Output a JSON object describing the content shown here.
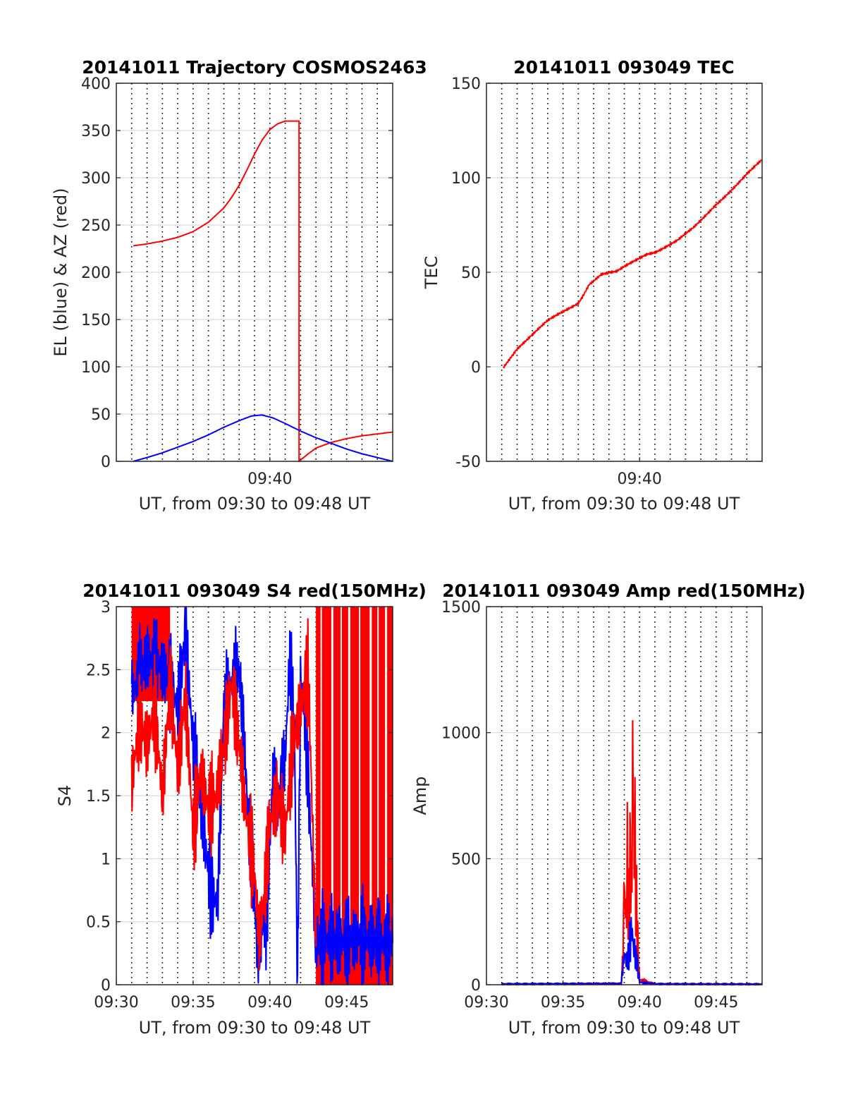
{
  "colors": {
    "red": "#ff0000",
    "blue": "#0000ff",
    "grid": "#262626",
    "axis": "#262626"
  },
  "chart_data": [
    {
      "id": "traj",
      "type": "line",
      "title": "20141011 Trajectory COSMOS2463",
      "xlabel": "UT, from 09:30 to 09:48 UT",
      "ylabel": "EL (blue) & AZ (red)",
      "xlim_min": [
        30,
        48
      ],
      "ylim": [
        0,
        400
      ],
      "yticks": [
        "0",
        "50",
        "100",
        "150",
        "200",
        "250",
        "300",
        "350",
        "400"
      ],
      "xticks": [
        {
          "at_min": 40,
          "label": "09:40"
        }
      ],
      "grid": "dotted vertical every minute, horizontal at y ticks",
      "series": [
        {
          "color": "red",
          "x_min": [
            31.1,
            32,
            33,
            34,
            35,
            36,
            37,
            37.5,
            38,
            38.5,
            39,
            39.5,
            40,
            40.5,
            41,
            41.5,
            41.9,
            41.9,
            42.5,
            43,
            44,
            45,
            46,
            47,
            48
          ],
          "y": [
            228,
            230,
            233,
            237,
            243,
            253,
            268,
            279,
            292,
            308,
            325,
            340,
            351,
            357,
            360,
            360,
            360,
            0,
            8,
            14,
            20,
            24,
            27,
            29,
            31
          ]
        },
        {
          "color": "blue",
          "x_min": [
            31.1,
            32,
            33,
            34,
            35,
            36,
            37,
            38,
            38.8,
            39.5,
            40.2,
            41,
            42,
            43,
            44,
            45,
            46,
            47,
            48
          ],
          "y": [
            0,
            4,
            9,
            15,
            21,
            28,
            36,
            43,
            48,
            49,
            46,
            40,
            32,
            25,
            19,
            13,
            8,
            4,
            0
          ]
        }
      ]
    },
    {
      "id": "tec",
      "type": "line",
      "title": "20141011 093049 TEC",
      "xlabel": "UT, from 09:30 to 09:48 UT",
      "ylabel": "TEC",
      "xlim_min": [
        30,
        48
      ],
      "ylim": [
        -50,
        150
      ],
      "yticks": [
        "-50",
        "0",
        "50",
        "100",
        "150"
      ],
      "xticks": [
        {
          "at_min": 40,
          "label": "09:40"
        }
      ],
      "series": [
        {
          "color": "red",
          "x_min": [
            31.1,
            32,
            33,
            34,
            35,
            36,
            36.3,
            36.7,
            37.5,
            38.5,
            39.5,
            40.5,
            41,
            41.5,
            42.5,
            43.5,
            44,
            45,
            46,
            47,
            47.7,
            48
          ],
          "y": [
            0,
            10,
            17,
            24,
            29,
            34,
            38,
            44,
            49,
            50,
            55,
            60,
            61,
            63,
            67,
            73,
            77,
            86,
            94,
            102,
            107,
            109
          ]
        }
      ]
    },
    {
      "id": "s4",
      "type": "line",
      "title": "20141011 093049 S4 red(150MHz)",
      "xlabel": "UT, from 09:30 to 09:48 UT",
      "ylabel": "S4",
      "xlim_min": [
        30,
        48
      ],
      "ylim": [
        0,
        3
      ],
      "yticks": [
        "0",
        "0.5",
        "1",
        "1.5",
        "2",
        "2.5",
        "3"
      ],
      "xticks": [
        {
          "at_min": 30,
          "label": "09:30"
        },
        {
          "at_min": 35,
          "label": "09:35"
        },
        {
          "at_min": 40,
          "label": "09:40"
        },
        {
          "at_min": 45,
          "label": "09:45"
        }
      ],
      "series": [
        {
          "color": "blue",
          "x_min": [
            31,
            32,
            33,
            33.5,
            34,
            34.5,
            35,
            35.5,
            35.8,
            36.2,
            36.6,
            37,
            37.5,
            38,
            38.3,
            38.6,
            38.9,
            39.2,
            39.5,
            39.8,
            40.2,
            40.5,
            41,
            41.3,
            41.6,
            41.8,
            42.0,
            42.3,
            43,
            44,
            45,
            46,
            47,
            48
          ],
          "y": [
            2.3,
            2.6,
            2.5,
            2.4,
            2.2,
            2.8,
            1.9,
            1.4,
            1.1,
            0.7,
            0.65,
            2.2,
            2.4,
            2.5,
            2.0,
            1.3,
            0.9,
            0.2,
            0.45,
            0.55,
            1.7,
            1.4,
            1.8,
            2.6,
            2.0,
            0.0,
            2.4,
            2.1,
            0.35,
            0.36,
            0.34,
            0.37,
            0.35,
            0.33
          ]
        },
        {
          "color": "red",
          "x_min": [
            31,
            31.5,
            32,
            32.5,
            33,
            33.5,
            34,
            34.5,
            35,
            35.5,
            36,
            36.5,
            37,
            37.5,
            38,
            38.5,
            39,
            39.3,
            39.7,
            40,
            40.5,
            41,
            41.5,
            42,
            42.5,
            43
          ],
          "y": [
            1.6,
            2.1,
            1.9,
            2.2,
            1.5,
            2.4,
            1.7,
            2.3,
            1.2,
            1.7,
            1.4,
            1.5,
            1.9,
            2.4,
            1.9,
            1.3,
            0.9,
            0.35,
            0.8,
            1.3,
            1.5,
            1.2,
            1.9,
            2.2,
            2.5,
            0.3
          ]
        }
      ]
    },
    {
      "id": "amp",
      "type": "line",
      "title": "20141011 093049 Amp red(150MHz)",
      "xlabel": "UT, from 09:30 to 09:48 UT",
      "ylabel": "Amp",
      "xlim_min": [
        30,
        48
      ],
      "ylim": [
        0,
        1500
      ],
      "yticks": [
        "0",
        "500",
        "1000",
        "1500"
      ],
      "xticks": [
        {
          "at_min": 30,
          "label": "09:30"
        },
        {
          "at_min": 35,
          "label": "09:35"
        },
        {
          "at_min": 40,
          "label": "09:40"
        },
        {
          "at_min": 45,
          "label": "09:45"
        }
      ],
      "series": [
        {
          "color": "red",
          "x_min": [
            31,
            38.8,
            38.9,
            39.0,
            39.1,
            39.2,
            39.3,
            39.4,
            39.5,
            39.55,
            39.6,
            39.7,
            39.8,
            39.9,
            40.0,
            41,
            48
          ],
          "y": [
            2,
            5,
            100,
            420,
            250,
            480,
            310,
            520,
            380,
            1040,
            600,
            570,
            300,
            150,
            20,
            3,
            2
          ]
        },
        {
          "color": "blue",
          "x_min": [
            31,
            38.8,
            39.0,
            39.2,
            39.4,
            39.5,
            39.6,
            39.8,
            40.0,
            41,
            48
          ],
          "y": [
            3,
            4,
            120,
            90,
            180,
            220,
            150,
            100,
            10,
            3,
            2
          ]
        }
      ]
    }
  ]
}
